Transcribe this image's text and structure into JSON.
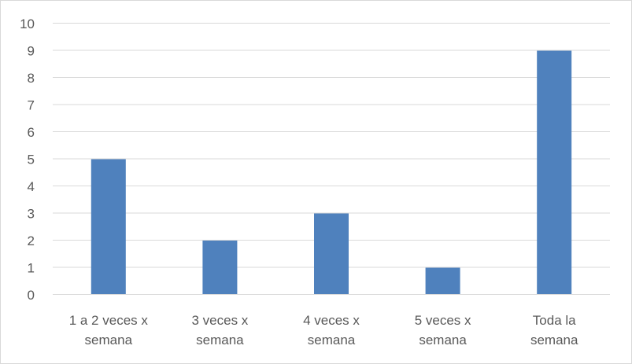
{
  "chart_data": {
    "type": "bar",
    "title": "",
    "xlabel": "",
    "ylabel": "",
    "categories": [
      [
        "1 a 2 veces x",
        "semana"
      ],
      [
        "3 veces x",
        "semana"
      ],
      [
        "4 veces x",
        "semana"
      ],
      [
        "5 veces x",
        "semana"
      ],
      [
        "Toda la",
        "semana"
      ]
    ],
    "values": [
      5,
      2,
      3,
      1,
      9
    ],
    "ylim": [
      0,
      10
    ],
    "yticks": [
      "0",
      "1",
      "2",
      "3",
      "4",
      "5",
      "6",
      "7",
      "8",
      "9",
      "10"
    ],
    "grid": true,
    "legend": "none",
    "colors": {
      "bar": "#4f81bd",
      "grid": "#d9d9d9",
      "text": "#595959",
      "border": "#d9d9d9"
    }
  }
}
